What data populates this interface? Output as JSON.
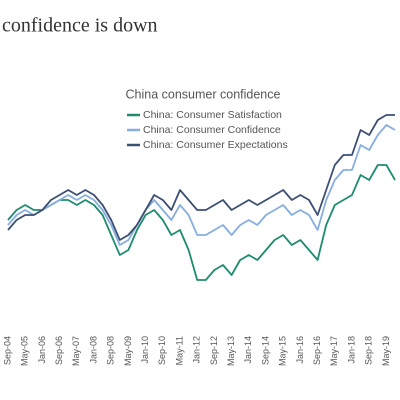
{
  "page_title": "confidence is down",
  "chart_data": {
    "type": "line",
    "title": "China consumer confidence",
    "categories": [
      "Sep-04",
      null,
      "May-05",
      null,
      "Jan-06",
      null,
      "Sep-06",
      null,
      "May-07",
      null,
      "Jan-08",
      null,
      "Sep-08",
      null,
      "May-09",
      null,
      "Jan-10",
      null,
      "Sep-10",
      null,
      "May-11",
      null,
      "Jan-12",
      null,
      "Sep-12",
      null,
      "May-13",
      null,
      "Jan-14",
      null,
      "Sep-14",
      null,
      "May-15",
      null,
      "Jan-16",
      null,
      "Sep-16",
      null,
      "May-17",
      null,
      "Jan-18",
      null,
      "Sep-18",
      null,
      "May-19",
      null
    ],
    "ylim": [
      80,
      130
    ],
    "series": [
      {
        "name": "China: Consumer Satisfaction",
        "color": "#1e8c6e",
        "values": [
          102,
          104,
          105,
          104,
          104,
          105,
          106,
          106,
          105,
          106,
          105,
          103,
          99,
          95,
          96,
          100,
          103,
          104,
          102,
          99,
          100,
          96,
          90,
          90,
          92,
          93,
          91,
          94,
          95,
          94,
          96,
          98,
          99,
          97,
          98,
          96,
          94,
          101,
          105,
          106,
          107,
          111,
          110,
          113,
          113,
          110
        ]
      },
      {
        "name": "China: Consumer Confidence",
        "color": "#86aee0",
        "values": [
          101,
          103,
          104,
          103,
          104,
          105,
          106,
          107,
          106,
          107,
          106,
          104,
          101,
          97,
          98,
          101,
          104,
          106,
          104,
          102,
          105,
          103,
          99,
          99,
          100,
          101,
          99,
          101,
          102,
          101,
          103,
          104,
          105,
          103,
          104,
          103,
          100,
          106,
          110,
          112,
          112,
          117,
          116,
          119,
          121,
          120
        ]
      },
      {
        "name": "China: Consumer Expectations",
        "color": "#3d4f73",
        "values": [
          100,
          102,
          103,
          103,
          104,
          106,
          107,
          108,
          107,
          108,
          107,
          105,
          102,
          98,
          99,
          101,
          104,
          107,
          106,
          104,
          108,
          106,
          104,
          104,
          105,
          106,
          104,
          105,
          106,
          105,
          106,
          107,
          108,
          106,
          107,
          106,
          103,
          108,
          113,
          115,
          115,
          120,
          119,
          122,
          123,
          123
        ]
      }
    ],
    "legend": "top"
  }
}
